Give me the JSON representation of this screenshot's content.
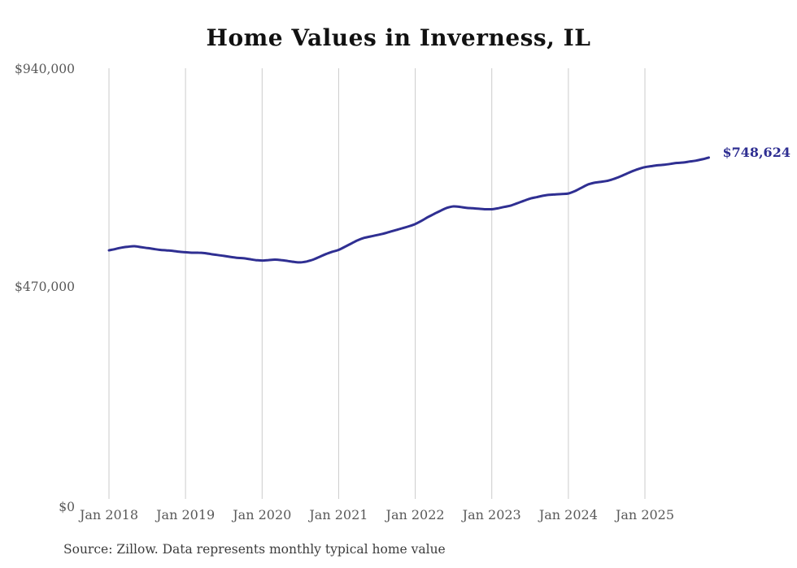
{
  "chart": {
    "title": "Home Values in Inverness, IL",
    "source": "Source: Zillow. Data represents monthly typical home value",
    "end_label": "$748,624",
    "colors": {
      "line": "#2f2f92",
      "end_label": "#2f2f92",
      "gridline": "#cbcbcb",
      "axis_text": "#595959",
      "title_text": "#111111",
      "source_text": "#3c3c3c",
      "background": "#ffffff"
    }
  },
  "chart_data": {
    "type": "line",
    "title": "Home Values in Inverness, IL",
    "series_name": "Monthly typical home value (USD)",
    "xlabel": "",
    "ylabel": "",
    "ylim": [
      0,
      940000
    ],
    "grid": "vertical-gridlines-only",
    "legend": "none",
    "latest_value": 748624,
    "latest_value_label": "$748,624",
    "y_ticks": [
      {
        "label": "$940,000",
        "value": 940000
      },
      {
        "label": "$470,000",
        "value": 470000
      },
      {
        "label": "$0",
        "value": 0
      }
    ],
    "x_ticks": [
      {
        "label": "Jan 2018",
        "month": "2018-01"
      },
      {
        "label": "Jan 2019",
        "month": "2019-01"
      },
      {
        "label": "Jan 2020",
        "month": "2020-01"
      },
      {
        "label": "Jan 2021",
        "month": "2021-01"
      },
      {
        "label": "Jan 2022",
        "month": "2022-01"
      },
      {
        "label": "Jan 2023",
        "month": "2023-01"
      },
      {
        "label": "Jan 2024",
        "month": "2024-01"
      },
      {
        "label": "Jan 2025",
        "month": "2025-01"
      }
    ],
    "points": [
      [
        "2018-01",
        548000
      ],
      [
        "2018-02",
        551000
      ],
      [
        "2018-03",
        554000
      ],
      [
        "2018-04",
        556000
      ],
      [
        "2018-05",
        557000
      ],
      [
        "2018-06",
        555000
      ],
      [
        "2018-07",
        553000
      ],
      [
        "2018-08",
        551000
      ],
      [
        "2018-09",
        549000
      ],
      [
        "2018-10",
        548000
      ],
      [
        "2018-11",
        547000
      ],
      [
        "2018-12",
        545000
      ],
      [
        "2019-01",
        544000
      ],
      [
        "2019-02",
        543000
      ],
      [
        "2019-03",
        543000
      ],
      [
        "2019-04",
        542000
      ],
      [
        "2019-05",
        540000
      ],
      [
        "2019-06",
        538000
      ],
      [
        "2019-07",
        536000
      ],
      [
        "2019-08",
        534000
      ],
      [
        "2019-09",
        532000
      ],
      [
        "2019-10",
        531000
      ],
      [
        "2019-11",
        529000
      ],
      [
        "2019-12",
        527000
      ],
      [
        "2020-01",
        526000
      ],
      [
        "2020-02",
        527000
      ],
      [
        "2020-03",
        528000
      ],
      [
        "2020-04",
        527000
      ],
      [
        "2020-05",
        525000
      ],
      [
        "2020-06",
        523000
      ],
      [
        "2020-07",
        522000
      ],
      [
        "2020-08",
        524000
      ],
      [
        "2020-09",
        528000
      ],
      [
        "2020-10",
        534000
      ],
      [
        "2020-11",
        540000
      ],
      [
        "2020-12",
        545000
      ],
      [
        "2021-01",
        549000
      ],
      [
        "2021-02",
        556000
      ],
      [
        "2021-03",
        563000
      ],
      [
        "2021-04",
        570000
      ],
      [
        "2021-05",
        575000
      ],
      [
        "2021-06",
        578000
      ],
      [
        "2021-07",
        581000
      ],
      [
        "2021-08",
        584000
      ],
      [
        "2021-09",
        588000
      ],
      [
        "2021-10",
        592000
      ],
      [
        "2021-11",
        596000
      ],
      [
        "2021-12",
        600000
      ],
      [
        "2022-01",
        605000
      ],
      [
        "2022-02",
        612000
      ],
      [
        "2022-03",
        620000
      ],
      [
        "2022-04",
        627000
      ],
      [
        "2022-05",
        634000
      ],
      [
        "2022-06",
        640000
      ],
      [
        "2022-07",
        643000
      ],
      [
        "2022-08",
        642000
      ],
      [
        "2022-09",
        640000
      ],
      [
        "2022-10",
        639000
      ],
      [
        "2022-11",
        638000
      ],
      [
        "2022-12",
        637000
      ],
      [
        "2023-01",
        637000
      ],
      [
        "2023-02",
        639000
      ],
      [
        "2023-03",
        642000
      ],
      [
        "2023-04",
        645000
      ],
      [
        "2023-05",
        650000
      ],
      [
        "2023-06",
        655000
      ],
      [
        "2023-07",
        660000
      ],
      [
        "2023-08",
        663000
      ],
      [
        "2023-09",
        666000
      ],
      [
        "2023-10",
        668000
      ],
      [
        "2023-11",
        669000
      ],
      [
        "2023-12",
        670000
      ],
      [
        "2024-01",
        671000
      ],
      [
        "2024-02",
        676000
      ],
      [
        "2024-03",
        683000
      ],
      [
        "2024-04",
        690000
      ],
      [
        "2024-05",
        694000
      ],
      [
        "2024-06",
        696000
      ],
      [
        "2024-07",
        698000
      ],
      [
        "2024-08",
        702000
      ],
      [
        "2024-09",
        707000
      ],
      [
        "2024-10",
        713000
      ],
      [
        "2024-11",
        719000
      ],
      [
        "2024-12",
        724000
      ],
      [
        "2025-01",
        728000
      ],
      [
        "2025-02",
        730000
      ],
      [
        "2025-03",
        732000
      ],
      [
        "2025-04",
        733000
      ],
      [
        "2025-05",
        735000
      ],
      [
        "2025-06",
        737000
      ],
      [
        "2025-07",
        738000
      ],
      [
        "2025-08",
        740000
      ],
      [
        "2025-09",
        742000
      ],
      [
        "2025-10",
        745000
      ],
      [
        "2025-11",
        748624
      ]
    ]
  }
}
